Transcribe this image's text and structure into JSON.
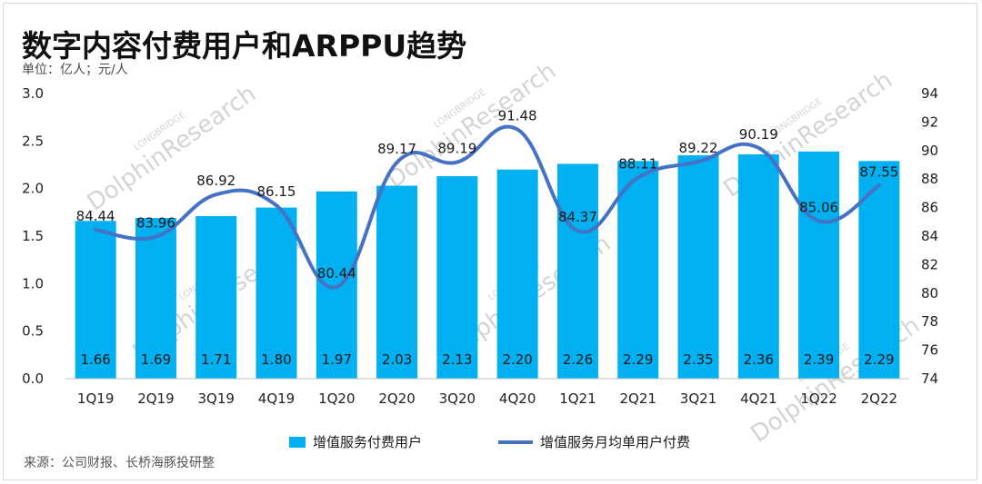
{
  "header": {
    "title": "数字内容付费用户和ARPPU趋势",
    "subtitle": "单位：亿人；元/人"
  },
  "footer": {
    "source": "来源：公司财报、长桥海豚投研整"
  },
  "watermark": {
    "brand_small": "LONGBRIDGE",
    "brand_large": "DolphinResearch"
  },
  "colors": {
    "bar": "#00B0F0",
    "line": "#4472C4",
    "axis_text": "#222222"
  },
  "chart_data": {
    "type": "bar+line",
    "categories": [
      "1Q19",
      "2Q19",
      "3Q19",
      "4Q19",
      "1Q20",
      "2Q20",
      "3Q20",
      "4Q20",
      "1Q21",
      "2Q21",
      "3Q21",
      "4Q21",
      "1Q22",
      "2Q22"
    ],
    "series": [
      {
        "name": "增值服务付费用户",
        "type": "bar",
        "axis": "left",
        "values": [
          1.66,
          1.69,
          1.71,
          1.8,
          1.97,
          2.03,
          2.13,
          2.2,
          2.26,
          2.29,
          2.35,
          2.36,
          2.39,
          2.29
        ],
        "labels": [
          "1.66",
          "1.69",
          "1.71",
          "1.80",
          "1.97",
          "2.03",
          "2.13",
          "2.20",
          "2.26",
          "2.29",
          "2.35",
          "2.36",
          "2.39",
          "2.29"
        ]
      },
      {
        "name": "增值服务月均单用户付费",
        "type": "line",
        "axis": "right",
        "values": [
          84.44,
          83.96,
          86.92,
          86.15,
          80.44,
          89.17,
          89.19,
          91.48,
          84.37,
          88.11,
          89.22,
          90.19,
          85.06,
          87.55
        ],
        "labels": [
          "84.44",
          "83.96",
          "86.92",
          "86.15",
          "80.44",
          "89.17",
          "89.19",
          "91.48",
          "84.37",
          "88.11",
          "89.22",
          "90.19",
          "85.06",
          "87.55"
        ]
      }
    ],
    "left_axis": {
      "ylim": [
        0,
        3.0
      ],
      "ticks": [
        "0.0",
        "0.5",
        "1.0",
        "1.5",
        "2.0",
        "2.5",
        "3.0"
      ]
    },
    "right_axis": {
      "ylim": [
        74,
        94
      ],
      "ticks": [
        "74",
        "76",
        "78",
        "80",
        "82",
        "84",
        "86",
        "88",
        "90",
        "92",
        "94"
      ]
    },
    "legend": {
      "position": "bottom"
    }
  }
}
